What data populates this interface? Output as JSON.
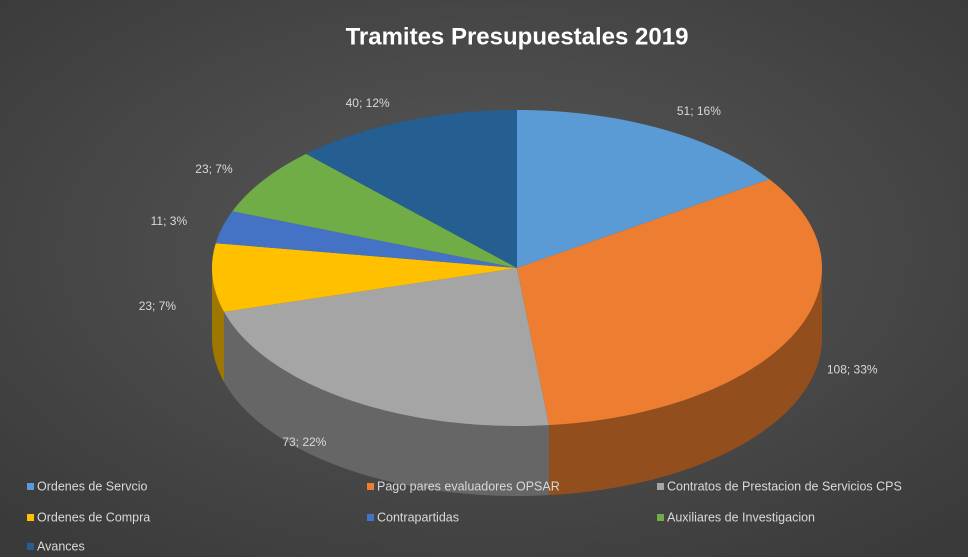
{
  "chart_data": {
    "type": "pie3d",
    "title": "Tramites Presupuestales 2019",
    "categories": [
      "Ordenes de Servcio",
      "Pago pares evaluadores OPSAR",
      "Contratos de Prestacion de Servicios CPS",
      "Ordenes de Compra",
      "Contrapartidas",
      "Auxiliares de Investigacion",
      "Avances"
    ],
    "values": [
      51,
      108,
      73,
      23,
      11,
      23,
      40
    ],
    "value_labels": [
      "51; 16%",
      "108; 33%",
      "73; 22%",
      "23; 7%",
      "11; 3%",
      "23; 7%",
      "40; 12%"
    ],
    "colors": [
      "#5b9bd5",
      "#ed7d31",
      "#a5a5a5",
      "#ffc000",
      "#4472c4",
      "#70ad47",
      "#255e91"
    ],
    "legend": "bottom"
  }
}
